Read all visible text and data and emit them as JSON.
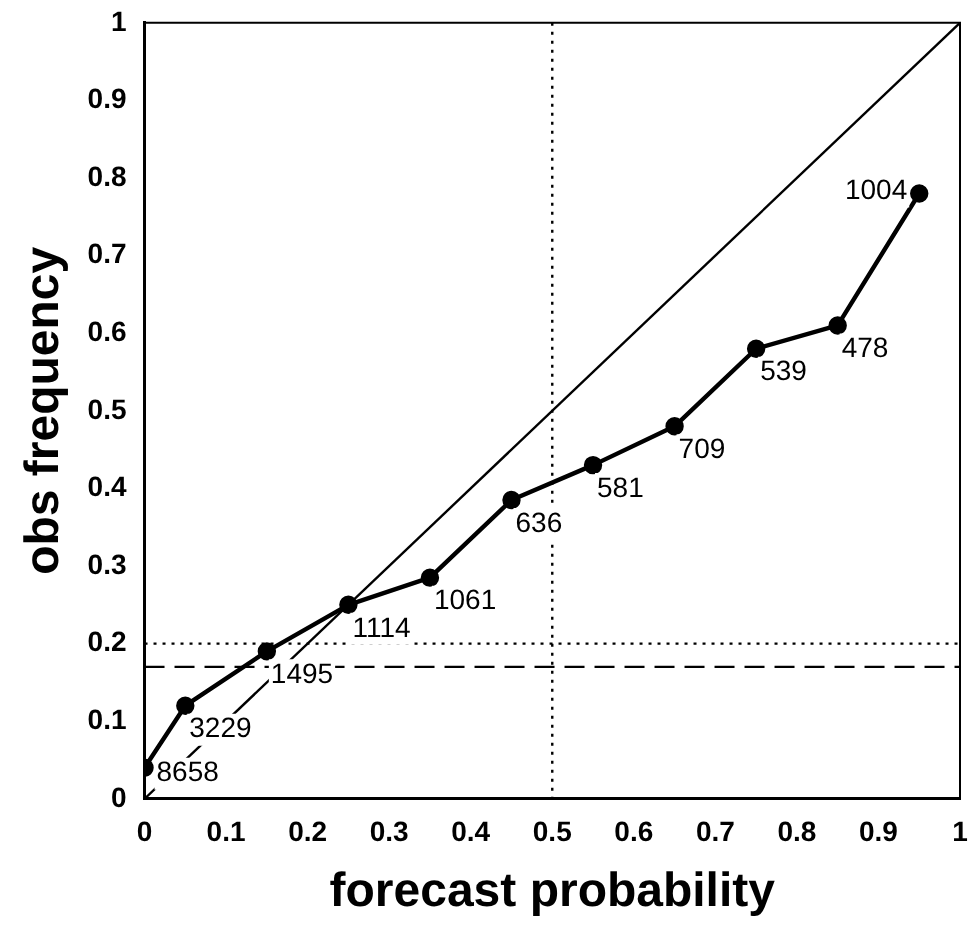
{
  "chart_data": {
    "type": "line",
    "xlabel": "forecast probability",
    "ylabel": "obs frequency",
    "x": [
      0,
      0.05,
      0.15,
      0.25,
      0.35,
      0.45,
      0.55,
      0.65,
      0.75,
      0.85,
      0.95
    ],
    "series": [
      {
        "color": "#000000",
        "values": [
          0.04,
          0.12,
          0.19,
          0.25,
          0.285,
          0.385,
          0.43,
          0.48,
          0.58,
          0.61,
          0.78
        ]
      },
      {
        "type": "line",
        "x": [
          0,
          1
        ],
        "values": [
          0,
          1
        ],
        "color": "#000000",
        "marker": "none"
      }
    ],
    "marker": "circle",
    "line_style": "solid",
    "grid": false,
    "legend": false,
    "xlim": [
      0,
      1
    ],
    "ylim": [
      0,
      1
    ],
    "xticks": [
      0,
      0.1,
      0.2,
      0.3,
      0.4,
      0.5,
      0.6,
      0.7,
      0.8,
      0.9,
      1
    ],
    "yticks": [
      0,
      0.1,
      0.2,
      0.3,
      0.4,
      0.5,
      0.6,
      0.7,
      0.8,
      0.9,
      1
    ],
    "ref_lines": [
      {
        "axis": "y",
        "value": 0.17,
        "line_style": "dashed"
      },
      {
        "axis": "y",
        "value": 0.2,
        "line_style": "dotted"
      },
      {
        "axis": "x",
        "value": 0.5,
        "line_style": "dotted"
      }
    ],
    "annotations": [
      {
        "text": "8658",
        "x": 0,
        "y": 0.04
      },
      {
        "text": "3229",
        "x": 0.05,
        "y": 0.12
      },
      {
        "text": "1495",
        "x": 0.15,
        "y": 0.19
      },
      {
        "text": "1114",
        "x": 0.25,
        "y": 0.25
      },
      {
        "text": "1061",
        "x": 0.35,
        "y": 0.285
      },
      {
        "text": "636",
        "x": 0.45,
        "y": 0.385
      },
      {
        "text": "581",
        "x": 0.55,
        "y": 0.43
      },
      {
        "text": "709",
        "x": 0.65,
        "y": 0.48
      },
      {
        "text": "539",
        "x": 0.75,
        "y": 0.58
      },
      {
        "text": "478",
        "x": 0.85,
        "y": 0.61
      },
      {
        "text": "1004",
        "x": 0.95,
        "y": 0.78
      }
    ]
  }
}
